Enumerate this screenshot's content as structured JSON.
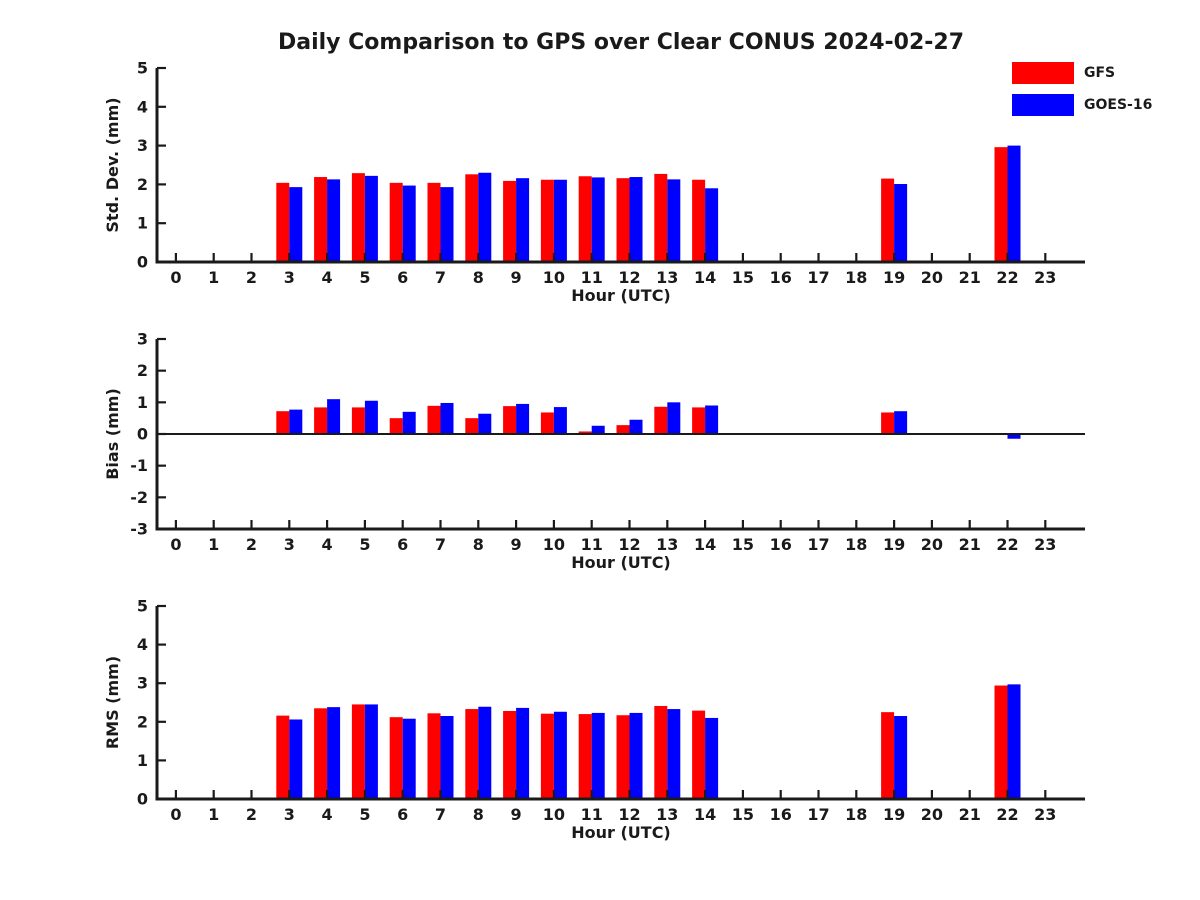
{
  "title": "Daily Comparison to GPS over Clear CONUS 2024-02-27",
  "legend": {
    "items": [
      {
        "label": "GFS",
        "color": "#ff0000"
      },
      {
        "label": "GOES-16",
        "color": "#0000ff"
      }
    ]
  },
  "colors": {
    "text": "#1a1a1a",
    "axis": "#1a1a1a",
    "background": "#ffffff"
  },
  "chart_data": [
    {
      "type": "bar",
      "ylabel": "Std. Dev. (mm)",
      "xlabel": "Hour (UTC)",
      "ylim": [
        0,
        5
      ],
      "yticks": [
        0,
        1,
        2,
        3,
        4,
        5
      ],
      "zero_line": false,
      "grid": false,
      "legend_position": "top-right-of-figure",
      "categories": [
        0,
        1,
        2,
        3,
        4,
        5,
        6,
        7,
        8,
        9,
        10,
        11,
        12,
        13,
        14,
        15,
        16,
        17,
        18,
        19,
        20,
        21,
        22,
        23
      ],
      "series": [
        {
          "name": "GFS",
          "color": "#ff0000",
          "values": [
            null,
            null,
            null,
            2.04,
            2.19,
            2.29,
            2.04,
            2.04,
            2.26,
            2.09,
            2.12,
            2.21,
            2.16,
            2.27,
            2.12,
            null,
            null,
            null,
            null,
            2.15,
            null,
            null,
            2.96,
            null
          ]
        },
        {
          "name": "GOES-16",
          "color": "#0000ff",
          "values": [
            null,
            null,
            null,
            1.93,
            2.13,
            2.22,
            1.97,
            1.93,
            2.3,
            2.16,
            2.12,
            2.18,
            2.19,
            2.13,
            1.9,
            null,
            null,
            null,
            null,
            2.01,
            null,
            null,
            3.0,
            null
          ]
        }
      ]
    },
    {
      "type": "bar",
      "ylabel": "Bias (mm)",
      "xlabel": "Hour (UTC)",
      "ylim": [
        -3,
        3
      ],
      "yticks": [
        3,
        2,
        1,
        0,
        -1,
        -2,
        -3
      ],
      "zero_line": true,
      "grid": false,
      "categories": [
        0,
        1,
        2,
        3,
        4,
        5,
        6,
        7,
        8,
        9,
        10,
        11,
        12,
        13,
        14,
        15,
        16,
        17,
        18,
        19,
        20,
        21,
        22,
        23
      ],
      "series": [
        {
          "name": "GFS",
          "color": "#ff0000",
          "values": [
            null,
            null,
            null,
            0.72,
            0.84,
            0.84,
            0.5,
            0.89,
            0.5,
            0.88,
            0.68,
            0.08,
            0.28,
            0.86,
            0.84,
            null,
            null,
            null,
            null,
            0.68,
            null,
            null,
            0.02,
            null
          ]
        },
        {
          "name": "GOES-16",
          "color": "#0000ff",
          "values": [
            null,
            null,
            null,
            0.77,
            1.1,
            1.05,
            0.7,
            0.98,
            0.64,
            0.95,
            0.85,
            0.26,
            0.45,
            1.0,
            0.9,
            null,
            null,
            null,
            null,
            0.72,
            null,
            null,
            -0.15,
            null
          ]
        }
      ]
    },
    {
      "type": "bar",
      "ylabel": "RMS (mm)",
      "xlabel": "Hour (UTC)",
      "ylim": [
        0,
        5
      ],
      "yticks": [
        0,
        1,
        2,
        3,
        4,
        5
      ],
      "zero_line": false,
      "grid": false,
      "categories": [
        0,
        1,
        2,
        3,
        4,
        5,
        6,
        7,
        8,
        9,
        10,
        11,
        12,
        13,
        14,
        15,
        16,
        17,
        18,
        19,
        20,
        21,
        22,
        23
      ],
      "series": [
        {
          "name": "GFS",
          "color": "#ff0000",
          "values": [
            null,
            null,
            null,
            2.16,
            2.35,
            2.45,
            2.12,
            2.22,
            2.33,
            2.28,
            2.21,
            2.2,
            2.17,
            2.41,
            2.29,
            null,
            null,
            null,
            null,
            2.25,
            null,
            null,
            2.94,
            null
          ]
        },
        {
          "name": "GOES-16",
          "color": "#0000ff",
          "values": [
            null,
            null,
            null,
            2.06,
            2.38,
            2.45,
            2.08,
            2.15,
            2.39,
            2.36,
            2.26,
            2.23,
            2.23,
            2.33,
            2.1,
            null,
            null,
            null,
            null,
            2.15,
            null,
            null,
            2.97,
            null
          ]
        }
      ]
    }
  ]
}
